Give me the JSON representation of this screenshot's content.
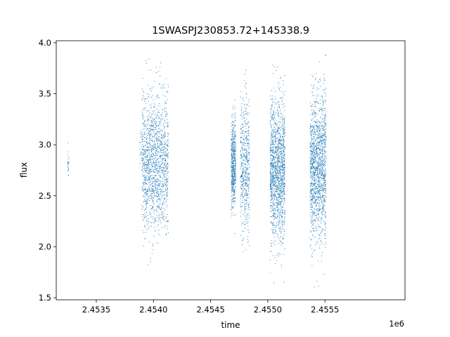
{
  "chart_data": {
    "type": "scatter",
    "title": "1SWASPJ230853.72+145338.9",
    "xlabel": "time",
    "ylabel": "flux",
    "x_offset_label": "1e6",
    "xlim": [
      2453150,
      2456200
    ],
    "ylim": [
      1.48,
      4.02
    ],
    "x_ticks": [
      2453500,
      2454000,
      2454500,
      2455000,
      2455500
    ],
    "x_tick_labels": [
      "2.4535",
      "2.4540",
      "2.4545",
      "2.4550",
      "2.4555"
    ],
    "y_ticks": [
      1.5,
      2.0,
      2.5,
      3.0,
      3.5,
      4.0
    ],
    "y_tick_labels": [
      "1.5",
      "2.0",
      "2.5",
      "3.0",
      "3.5",
      "4.0"
    ],
    "grid": false,
    "marker_color": "#1f77b4",
    "series": [
      {
        "clusters": [
          {
            "x_range": [
              2453250,
              2453260
            ],
            "y_center": 2.82,
            "y_min": 2.6,
            "y_max": 3.06,
            "density": "sparse"
          },
          {
            "x_range": [
              2453880,
              2453900
            ],
            "y_center": 2.95,
            "y_min": 2.55,
            "y_max": 3.15,
            "density": "sparse"
          },
          {
            "x_range": [
              2453900,
              2454130
            ],
            "y_center": 2.82,
            "y_min": 1.65,
            "y_max": 3.85,
            "density": "dense"
          },
          {
            "x_range": [
              2454680,
              2454720
            ],
            "y_center": 2.8,
            "y_min": 2.0,
            "y_max": 3.45,
            "density": "medium"
          },
          {
            "x_range": [
              2454760,
              2454840
            ],
            "y_center": 2.8,
            "y_min": 1.62,
            "y_max": 3.74,
            "density": "medium"
          },
          {
            "x_range": [
              2455020,
              2455150
            ],
            "y_center": 2.75,
            "y_min": 1.62,
            "y_max": 3.85,
            "density": "dense"
          },
          {
            "x_range": [
              2455370,
              2455510
            ],
            "y_center": 2.78,
            "y_min": 1.6,
            "y_max": 3.9,
            "density": "dense"
          }
        ]
      }
    ]
  }
}
